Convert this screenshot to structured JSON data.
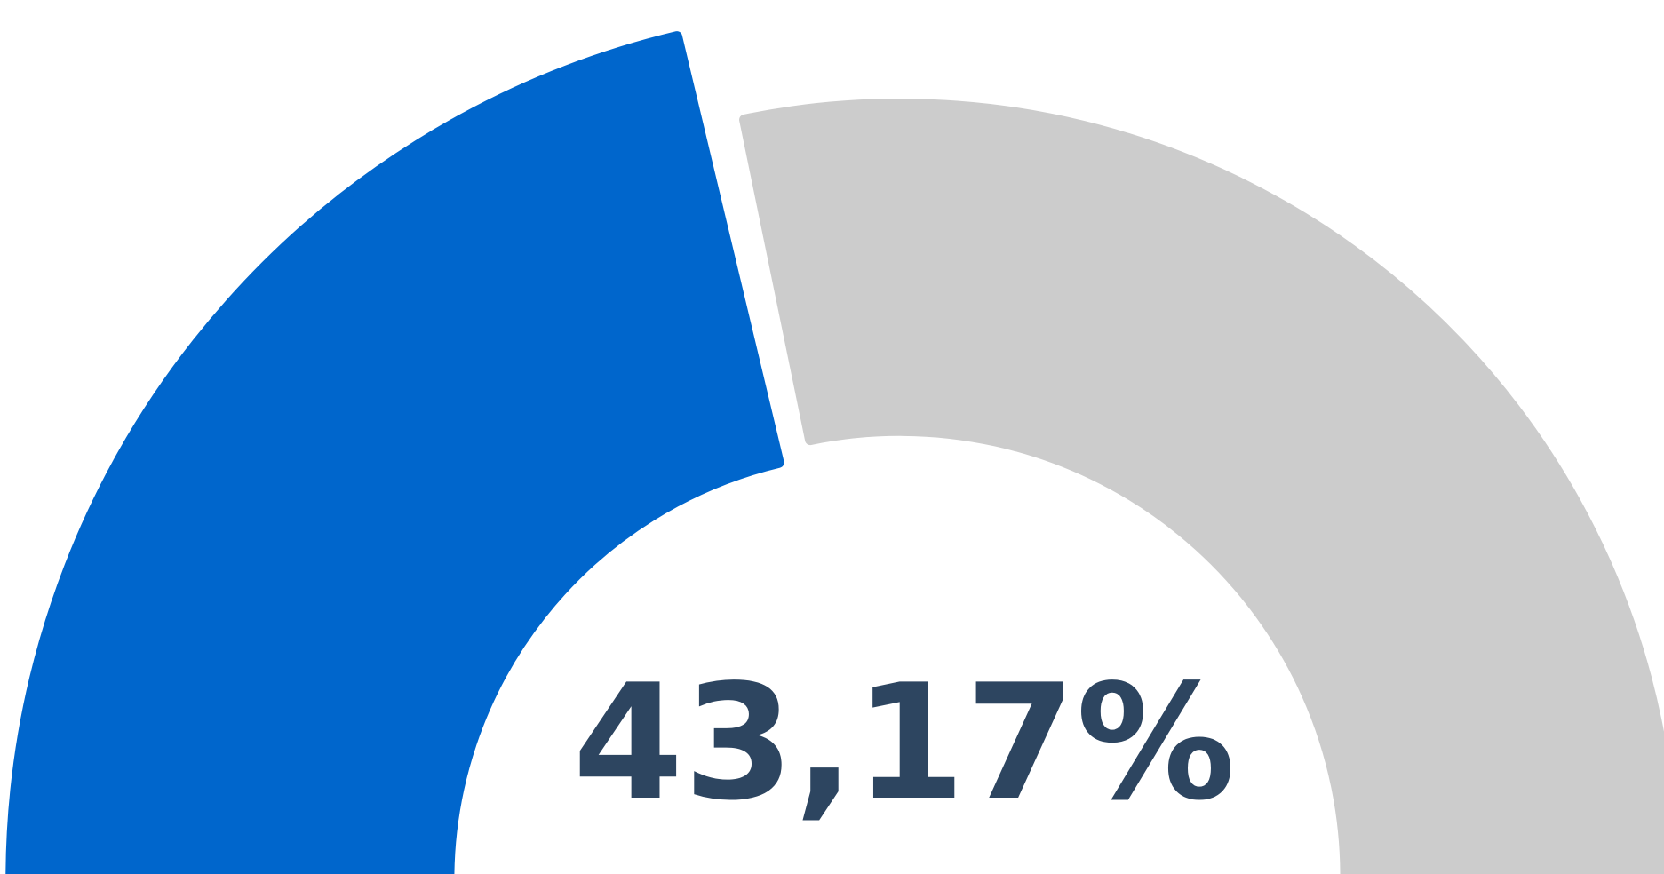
{
  "chart_data": {
    "type": "gauge",
    "value": 43.17,
    "value_label": "43,17%",
    "ylim": [
      0,
      100
    ],
    "color": "#0066cc",
    "track_color": "#cccccc"
  }
}
